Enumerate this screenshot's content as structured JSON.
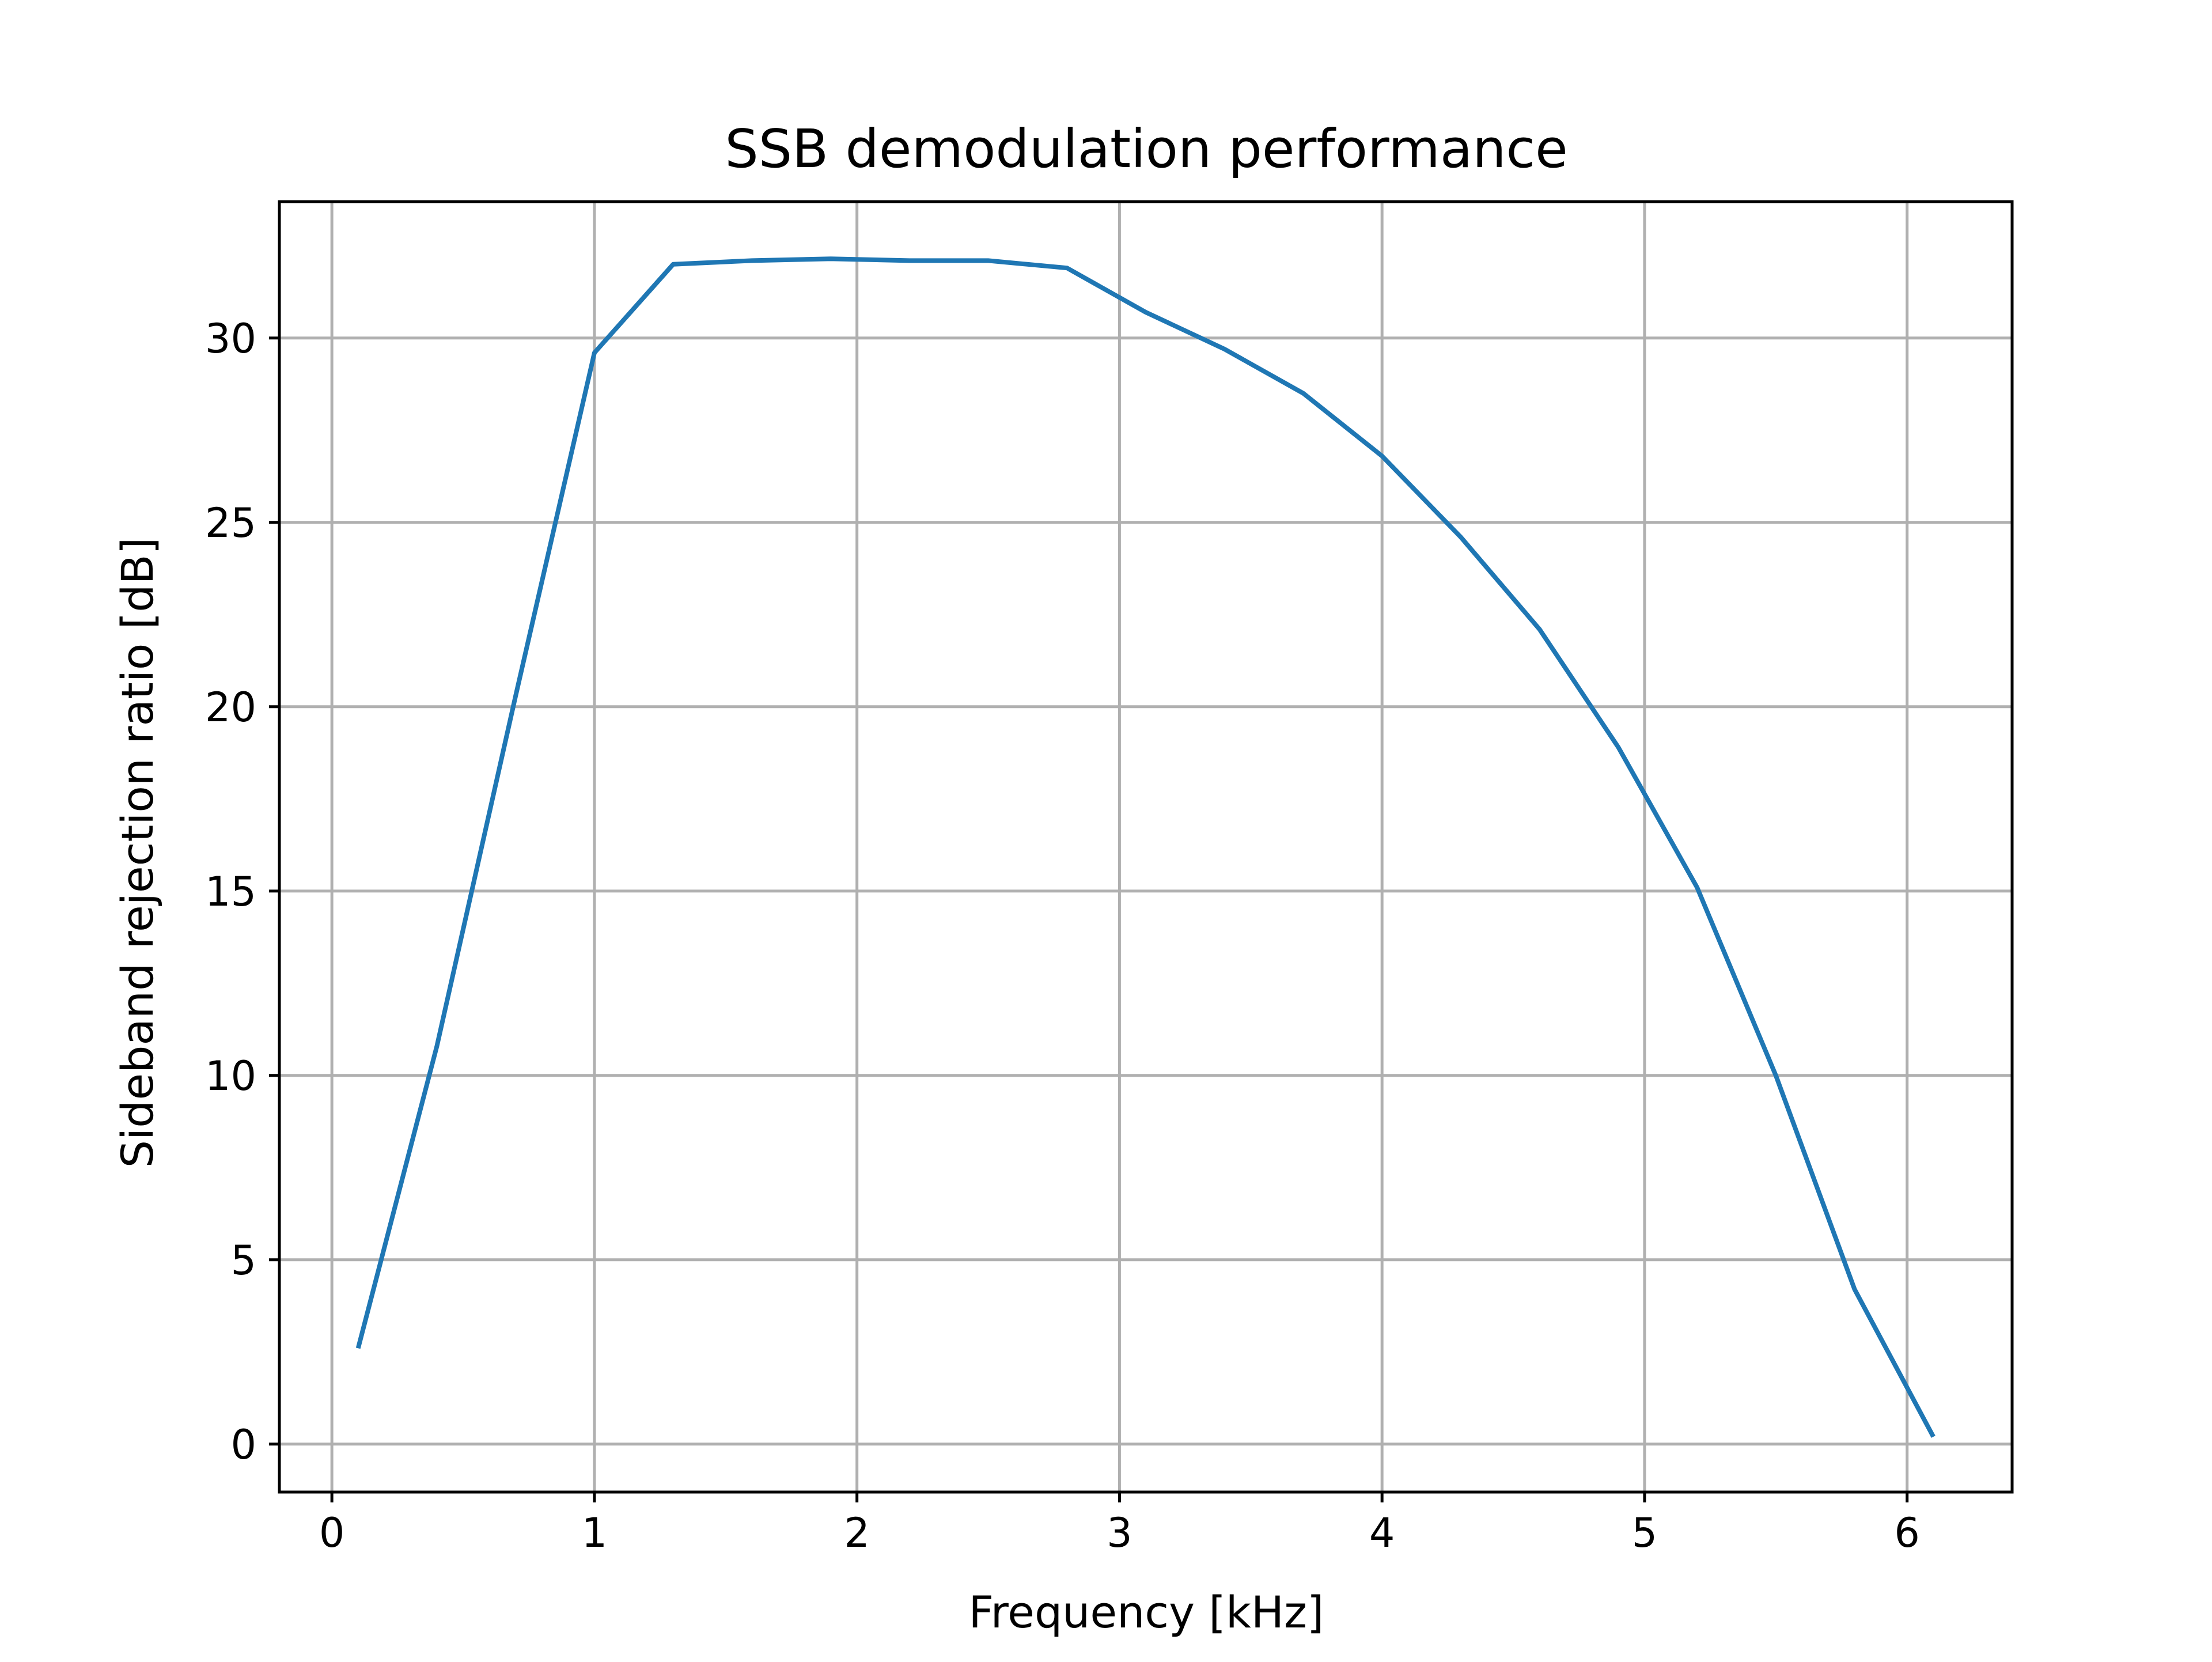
{
  "chart_data": {
    "type": "line",
    "title": "SSB demodulation performance",
    "xlabel": "Frequency [kHz]",
    "ylabel": "Sideband rejection ratio [dB]",
    "xlim": [
      -0.2,
      6.4
    ],
    "ylim": [
      -1.3,
      33.7
    ],
    "xticks": [
      0,
      1,
      2,
      3,
      4,
      5,
      6
    ],
    "yticks": [
      0,
      5,
      10,
      15,
      20,
      25,
      30
    ],
    "xtick_labels": [
      "0",
      "1",
      "2",
      "3",
      "4",
      "5",
      "6"
    ],
    "ytick_labels": [
      "0",
      "5",
      "10",
      "15",
      "20",
      "25",
      "30"
    ],
    "grid": true,
    "series": [
      {
        "color": "#1f77b4",
        "x": [
          0.1,
          0.4,
          0.7,
          1.0,
          1.3,
          1.6,
          1.9,
          2.2,
          2.5,
          2.8,
          3.1,
          3.4,
          3.7,
          4.0,
          4.3,
          4.6,
          4.9,
          5.2,
          5.5,
          5.8,
          6.1
        ],
        "y": [
          2.6,
          10.8,
          20.3,
          29.6,
          32.0,
          32.1,
          32.15,
          32.1,
          32.1,
          31.9,
          30.7,
          29.7,
          28.5,
          26.8,
          24.6,
          22.1,
          18.9,
          15.1,
          10.0,
          4.2,
          0.2
        ]
      }
    ]
  }
}
